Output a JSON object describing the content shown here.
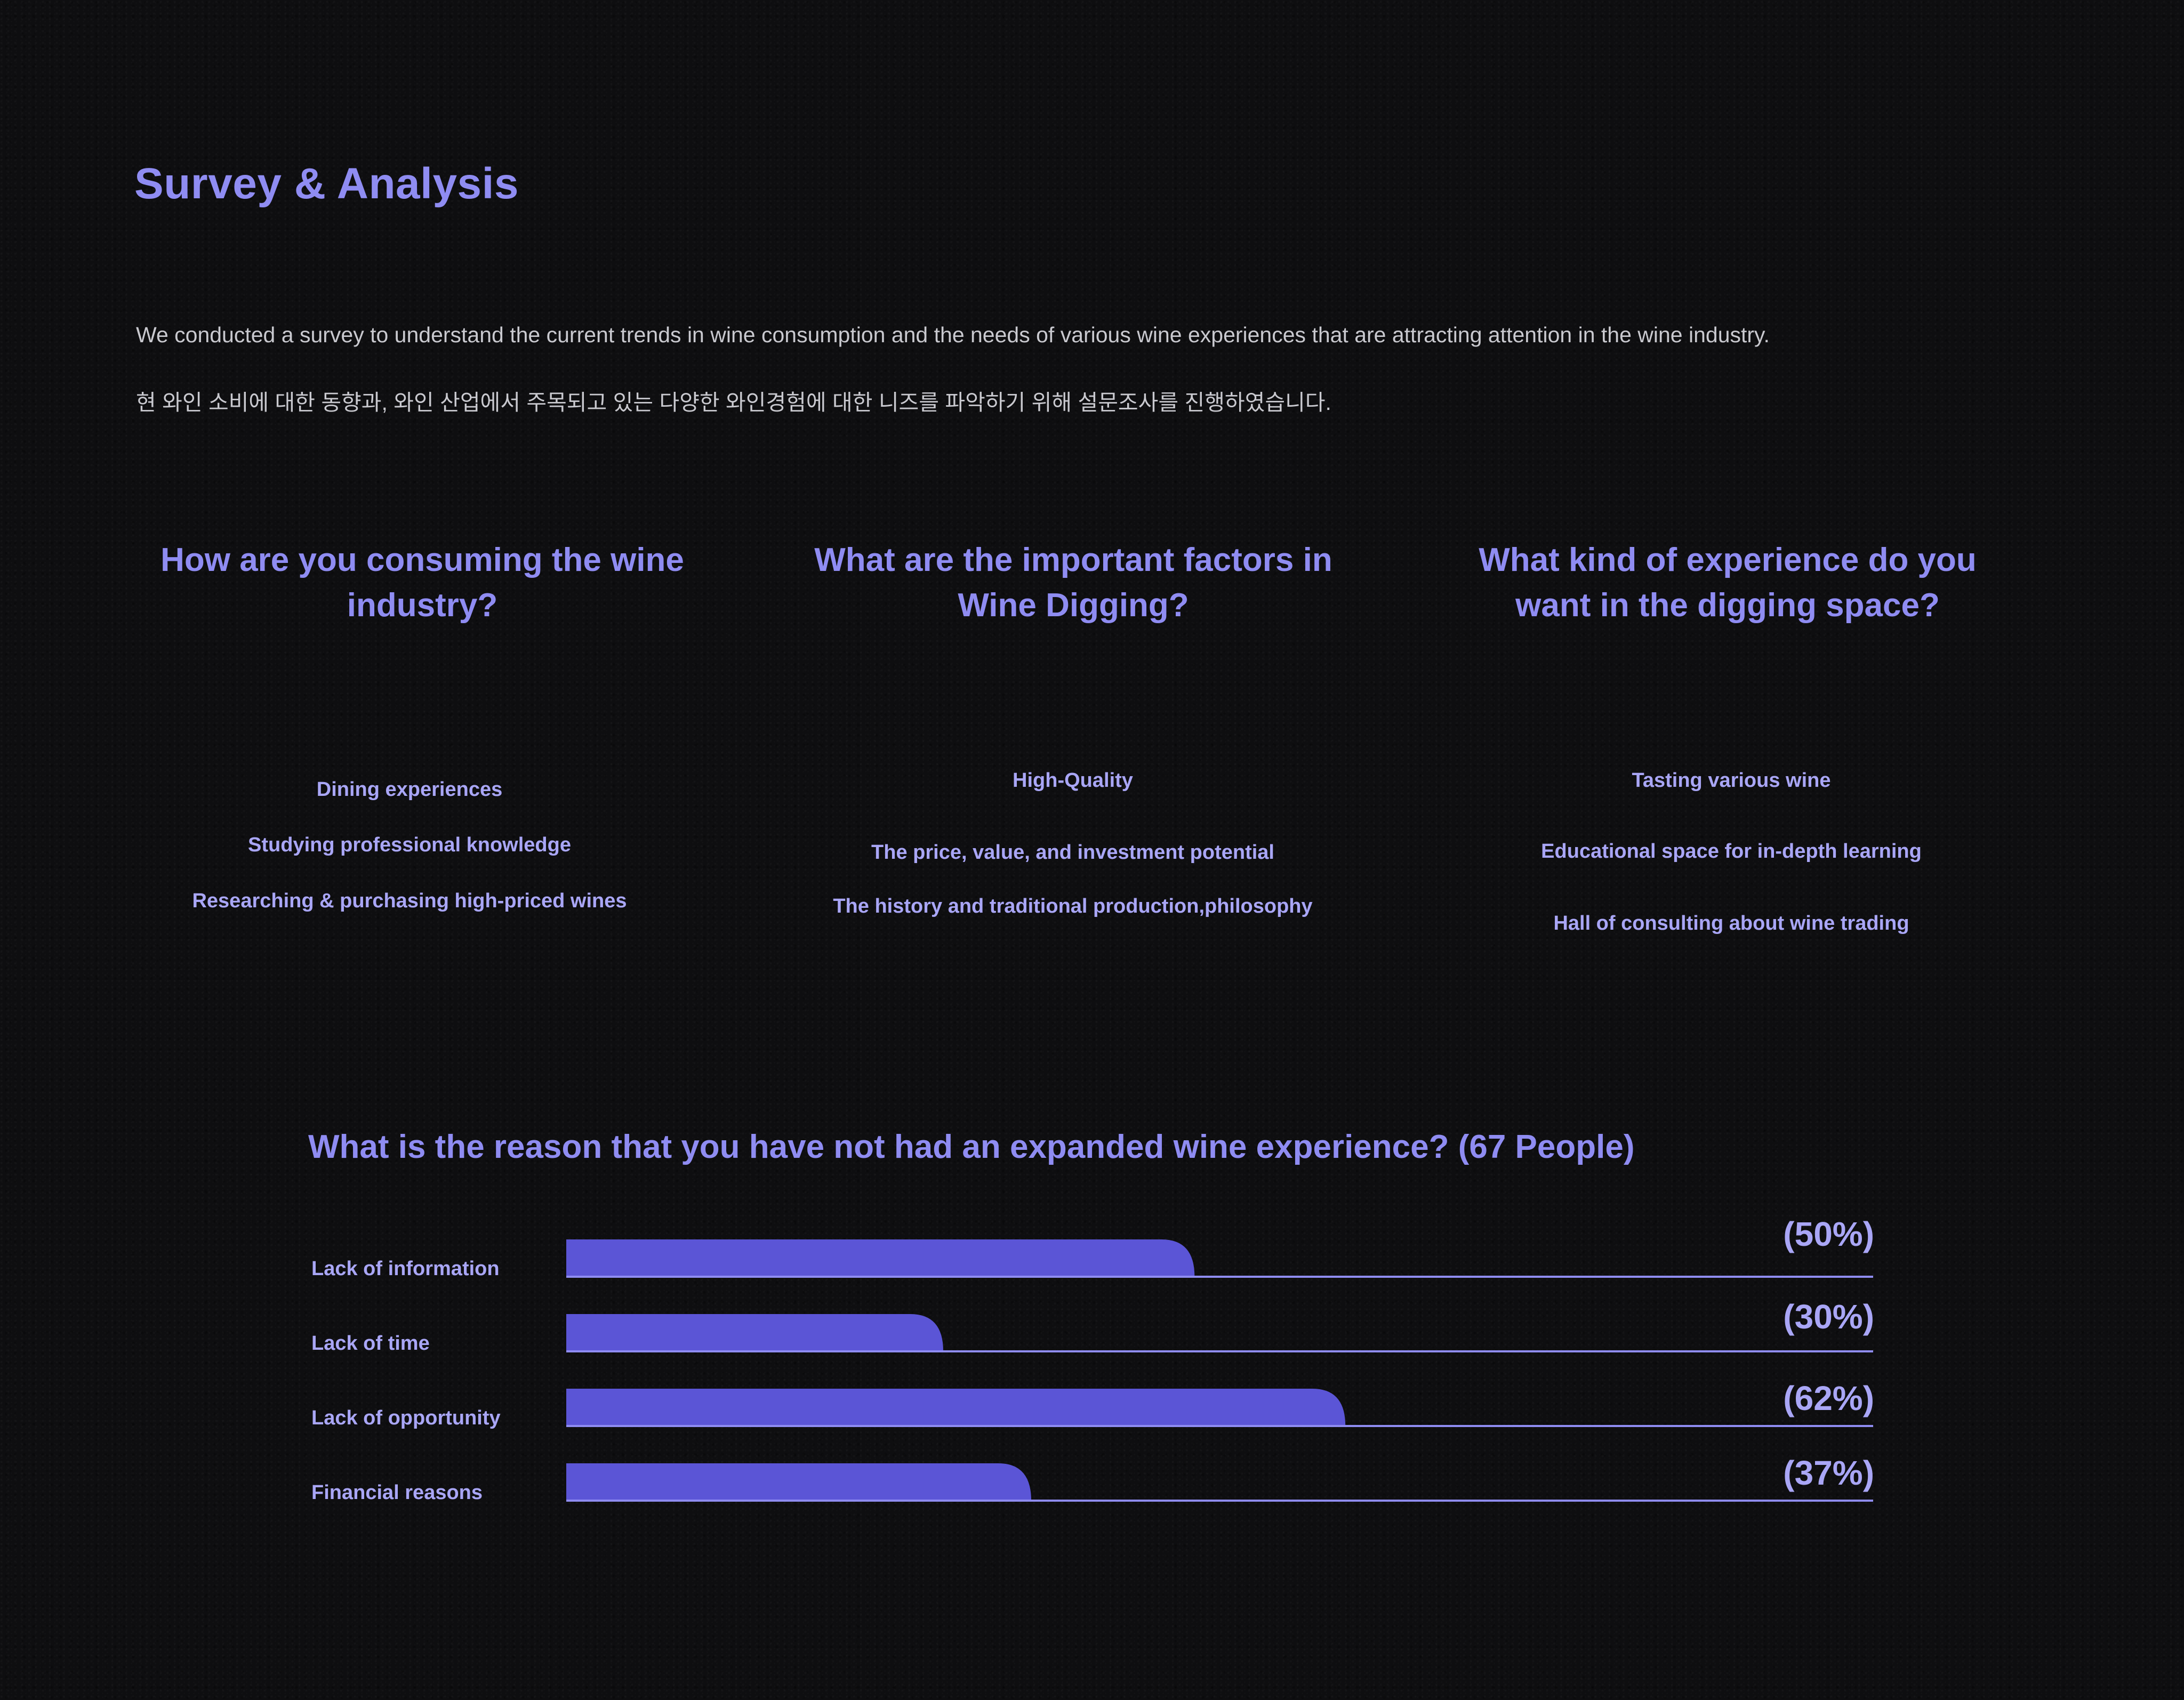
{
  "header": {
    "title": "Survey & Analysis",
    "intro_en": "We conducted a survey to understand the current trends in wine consumption and the needs of various wine experiences that are attracting attention in the wine industry.",
    "intro_ko": "현 와인 소비에 대한 동향과, 와인 산업에서 주목되고 있는 다양한 와인경험에 대한 니즈를 파악하기 위해 설문조사를 진행하였습니다."
  },
  "questions": [
    {
      "title": "How are you consuming the wine industry?",
      "answers": [
        "Dining experiences",
        "Studying professional knowledge",
        "Researching & purchasing high-priced wines"
      ]
    },
    {
      "title": "What are the important factors in Wine Digging?",
      "answers": [
        "High-Quality",
        "The price, value, and investment potential",
        "The history and traditional production,philosophy"
      ]
    },
    {
      "title": "What kind of experience do you want in the digging space?",
      "answers": [
        "Tasting various wine",
        "Educational space for in-depth learning",
        "Hall of consulting about wine trading"
      ]
    }
  ],
  "chart_data": {
    "type": "bar",
    "orientation": "horizontal",
    "title": "What is the reason that you have not had an expanded wine experience?  (67 People)",
    "categories": [
      "Lack of information",
      "Lack of time",
      "Lack of opportunity",
      "Financial reasons"
    ],
    "values": [
      50,
      30,
      62,
      37
    ],
    "value_labels": [
      "(50%)",
      "(30%)",
      "(62%)",
      "(37%)"
    ],
    "xlim": [
      0,
      104
    ],
    "unit": "%",
    "grid": false,
    "bar_color": "#5b55d6",
    "track_color": "#8f8cf2"
  },
  "colors": {
    "background": "#0e0e10",
    "accent": "#8f8cf2",
    "bar": "#5b55d6",
    "body_text": "#c9c9cf"
  }
}
